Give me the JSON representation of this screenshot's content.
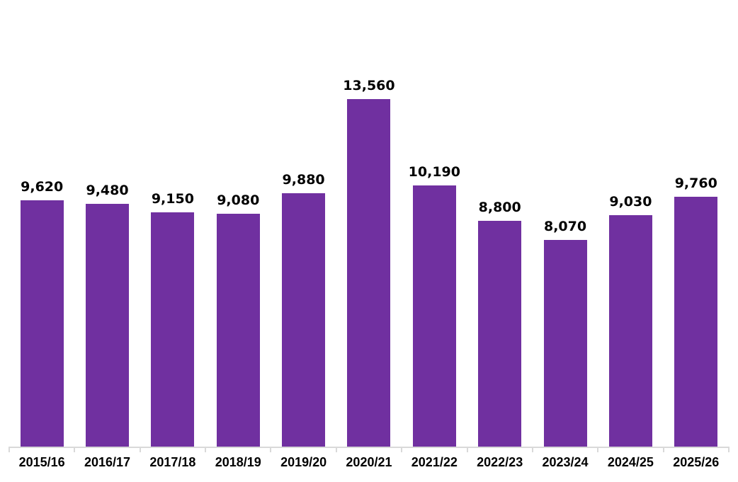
{
  "chart_data": {
    "type": "bar",
    "title": "",
    "xlabel": "",
    "ylabel": "",
    "categories": [
      "2015/16",
      "2016/17",
      "2017/18",
      "2018/19",
      "2019/20",
      "2020/21",
      "2021/22",
      "2022/23",
      "2023/24",
      "2024/25",
      "2025/26"
    ],
    "values": [
      9620,
      9480,
      9150,
      9080,
      9880,
      13560,
      10190,
      8800,
      8070,
      9030,
      9760
    ],
    "value_labels": [
      "9,620",
      "9,480",
      "9,150",
      "9,080",
      "9,880",
      "13,560",
      "10,190",
      "8,800",
      "8,070",
      "9,030",
      "9,760"
    ],
    "ylim": [
      0,
      13560
    ],
    "grid": false,
    "legend": null,
    "bar_color": "#7030a0"
  }
}
